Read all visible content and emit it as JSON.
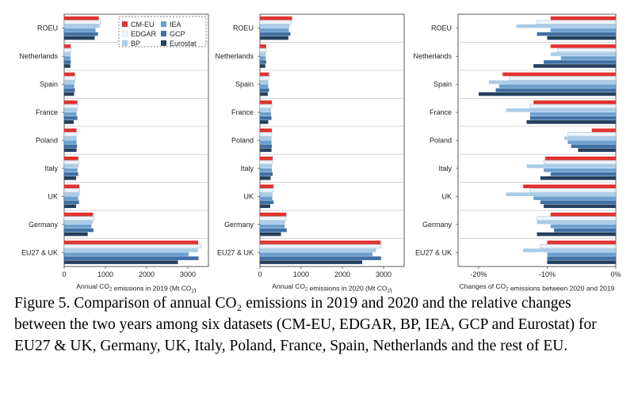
{
  "legend": {
    "items": [
      {
        "name": "CM-EU",
        "color": "#e0322f"
      },
      {
        "name": "EDGAR",
        "color": "#eef4fb"
      },
      {
        "name": "BP",
        "color": "#a9cce6"
      },
      {
        "name": "IEA",
        "color": "#6b9fd0"
      },
      {
        "name": "GCP",
        "color": "#3f6fa6"
      },
      {
        "name": "Eurostat",
        "color": "#24405e"
      }
    ]
  },
  "chart_data": [
    {
      "type": "bar",
      "orientation": "horizontal",
      "xlabel": "Annual CO2 emissions in 2019 (Mt CO2)",
      "xlim": [
        0,
        3500
      ],
      "xticks": [
        "0",
        "1000",
        "2000",
        "3000"
      ],
      "categories": [
        "ROEU",
        "Netherlands",
        "Spain",
        "France",
        "Poland",
        "Italy",
        "UK",
        "Germany",
        "EU27 & UK"
      ],
      "series": [
        {
          "name": "CM-EU",
          "values": [
            840,
            160,
            260,
            320,
            300,
            340,
            370,
            700,
            3250
          ]
        },
        {
          "name": "EDGAR",
          "values": [
            880,
            170,
            270,
            330,
            310,
            350,
            380,
            720,
            3320
          ]
        },
        {
          "name": "BP",
          "values": [
            860,
            160,
            260,
            320,
            300,
            340,
            370,
            690,
            3240
          ]
        },
        {
          "name": "IEA",
          "values": [
            760,
            150,
            240,
            300,
            300,
            320,
            340,
            660,
            3020
          ]
        },
        {
          "name": "GCP",
          "values": [
            820,
            160,
            260,
            320,
            310,
            340,
            360,
            710,
            3260
          ]
        },
        {
          "name": "Eurostat",
          "values": [
            740,
            150,
            240,
            230,
            300,
            290,
            290,
            570,
            2760
          ]
        }
      ]
    },
    {
      "type": "bar",
      "orientation": "horizontal",
      "xlabel": "Annual CO2 emissions in 2020 (Mt CO2)",
      "xlim": [
        0,
        3500
      ],
      "xticks": [
        "0",
        "1000",
        "2000",
        "3000"
      ],
      "categories": [
        "ROEU",
        "Netherlands",
        "Spain",
        "France",
        "Poland",
        "Italy",
        "UK",
        "Germany",
        "EU27 & UK"
      ],
      "series": [
        {
          "name": "CM-EU",
          "values": [
            780,
            150,
            220,
            290,
            290,
            310,
            330,
            640,
            2930
          ]
        },
        {
          "name": "EDGAR",
          "values": [
            760,
            150,
            220,
            290,
            290,
            310,
            330,
            650,
            2940
          ]
        },
        {
          "name": "BP",
          "values": [
            720,
            140,
            200,
            270,
            280,
            290,
            310,
            610,
            2820
          ]
        },
        {
          "name": "IEA",
          "values": [
            700,
            140,
            200,
            270,
            280,
            290,
            300,
            600,
            2730
          ]
        },
        {
          "name": "GCP",
          "values": [
            740,
            150,
            220,
            280,
            290,
            310,
            330,
            650,
            2940
          ]
        },
        {
          "name": "Eurostat",
          "values": [
            690,
            130,
            190,
            200,
            280,
            260,
            250,
            510,
            2480
          ]
        }
      ]
    },
    {
      "type": "bar",
      "orientation": "horizontal",
      "xlabel": "Changes of CO2 emissions between 2020 and 2019",
      "xlim": [
        -23,
        0
      ],
      "xticks": [
        "-20%",
        "-10%",
        "0%"
      ],
      "categories": [
        "ROEU",
        "Netherlands",
        "Spain",
        "France",
        "Poland",
        "Italy",
        "UK",
        "Germany",
        "EU27 & UK"
      ],
      "series": [
        {
          "name": "CM-EU",
          "values": [
            -9.5,
            -9.5,
            -16.5,
            -12.0,
            -3.5,
            -10.3,
            -13.5,
            -9.5,
            -10.0
          ]
        },
        {
          "name": "EDGAR",
          "values": [
            -11.5,
            -8.5,
            -15.5,
            -12.5,
            -7.0,
            -10.5,
            -12.5,
            -11.5,
            -11.0
          ]
        },
        {
          "name": "BP",
          "values": [
            -14.5,
            -9.5,
            -18.5,
            -16.0,
            -7.5,
            -13.0,
            -16.0,
            -11.5,
            -13.5
          ]
        },
        {
          "name": "IEA",
          "values": [
            -9.5,
            -8.0,
            -17.0,
            -12.5,
            -7.0,
            -10.5,
            -12.0,
            -9.5,
            -10.0
          ]
        },
        {
          "name": "GCP",
          "values": [
            -11.5,
            -10.5,
            -17.5,
            -12.5,
            -6.5,
            -9.5,
            -11.0,
            -9.0,
            -10.0
          ]
        },
        {
          "name": "Eurostat",
          "values": [
            -10.0,
            -12.0,
            -20.0,
            -13.0,
            -5.5,
            -11.0,
            -10.5,
            -11.5,
            -10.0
          ]
        }
      ]
    }
  ],
  "caption": "Figure 5. Comparison of annual CO₂ emissions in 2019 and 2020 and the relative changes between the two years among six datasets (CM-EU, EDGAR, BP, IEA, GCP and Eurostat) for EU27 & UK, Germany, UK, Italy, Poland, France, Spain, Netherlands and the rest of EU."
}
